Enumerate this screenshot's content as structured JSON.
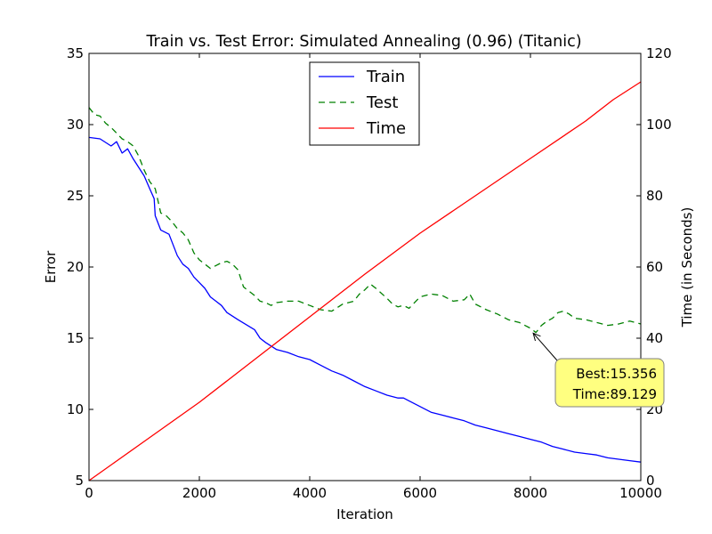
{
  "chart_data": {
    "type": "line",
    "title": "Train vs. Test Error: Simulated Annealing (0.96) (Titanic)",
    "xlabel": "Iteration",
    "ylabel": "Error",
    "y2label": "Time (in Seconds)",
    "xlim": [
      0,
      10000
    ],
    "ylim": [
      5,
      35
    ],
    "y2lim": [
      0,
      120
    ],
    "xticks": [
      "0",
      "2000",
      "4000",
      "6000",
      "8000",
      "10000"
    ],
    "yticks": [
      "5",
      "10",
      "15",
      "20",
      "25",
      "30",
      "35"
    ],
    "y2ticks": [
      "0",
      "20",
      "40",
      "60",
      "80",
      "100",
      "120"
    ],
    "grid": false,
    "legend_position": "top-center",
    "colors": {
      "train": "#0000ff",
      "test": "#008000",
      "time": "#ff0000",
      "y2label": "#008000",
      "annotation_fill": "#ffff80",
      "annotation_border": "#808080"
    },
    "series": [
      {
        "name": "Train",
        "axis": "left",
        "style": "solid",
        "x": [
          0,
          200,
          400,
          500,
          600,
          700,
          800,
          900,
          1000,
          1100,
          1180,
          1200,
          1300,
          1450,
          1500,
          1600,
          1700,
          1800,
          1900,
          2000,
          2100,
          2200,
          2300,
          2400,
          2500,
          2700,
          3000,
          3100,
          3200,
          3400,
          3600,
          3800,
          4000,
          4200,
          4400,
          4600,
          4800,
          5000,
          5200,
          5400,
          5600,
          5700,
          5800,
          6000,
          6200,
          6400,
          6600,
          6800,
          7000,
          7200,
          7400,
          7600,
          7800,
          8000,
          8200,
          8400,
          8600,
          8800,
          9000,
          9200,
          9400,
          9600,
          9800,
          10000
        ],
        "values": [
          29.1,
          29.0,
          28.5,
          28.8,
          28.0,
          28.3,
          27.6,
          27.0,
          26.4,
          25.5,
          24.8,
          23.6,
          22.6,
          22.3,
          21.8,
          20.8,
          20.2,
          19.9,
          19.3,
          18.9,
          18.5,
          17.9,
          17.6,
          17.3,
          16.8,
          16.3,
          15.6,
          15.0,
          14.7,
          14.2,
          14.0,
          13.7,
          13.5,
          13.1,
          12.7,
          12.4,
          12.0,
          11.6,
          11.3,
          11.0,
          10.8,
          10.8,
          10.6,
          10.2,
          9.8,
          9.6,
          9.4,
          9.2,
          8.9,
          8.7,
          8.5,
          8.3,
          8.1,
          7.9,
          7.7,
          7.4,
          7.2,
          7.0,
          6.9,
          6.8,
          6.6,
          6.5,
          6.4,
          6.3
        ]
      },
      {
        "name": "Test",
        "axis": "left",
        "style": "dashed",
        "x": [
          0,
          100,
          200,
          300,
          400,
          500,
          600,
          700,
          800,
          900,
          1000,
          1100,
          1200,
          1300,
          1400,
          1500,
          1600,
          1700,
          1800,
          1900,
          2000,
          2100,
          2200,
          2300,
          2400,
          2500,
          2600,
          2700,
          2800,
          2900,
          3000,
          3100,
          3200,
          3300,
          3400,
          3600,
          3800,
          4000,
          4200,
          4400,
          4600,
          4800,
          4900,
          5000,
          5100,
          5200,
          5400,
          5500,
          5600,
          5700,
          5800,
          6000,
          6200,
          6400,
          6600,
          6800,
          6900,
          7000,
          7200,
          7400,
          7600,
          7800,
          8000,
          8100,
          8200,
          8300,
          8400,
          8500,
          8600,
          8700,
          8800,
          9000,
          9200,
          9400,
          9600,
          9800,
          10000
        ],
        "values": [
          31.2,
          30.7,
          30.6,
          30.1,
          29.8,
          29.4,
          29.0,
          28.8,
          28.5,
          27.8,
          26.8,
          26.0,
          25.5,
          23.8,
          23.6,
          23.2,
          22.7,
          22.4,
          21.9,
          21.0,
          20.5,
          20.2,
          19.9,
          20.1,
          20.3,
          20.4,
          20.2,
          19.8,
          18.6,
          18.3,
          18.0,
          17.6,
          17.5,
          17.3,
          17.5,
          17.6,
          17.6,
          17.3,
          17.0,
          16.9,
          17.4,
          17.6,
          18.1,
          18.4,
          18.8,
          18.5,
          17.8,
          17.4,
          17.2,
          17.3,
          17.1,
          17.9,
          18.1,
          18.0,
          17.6,
          17.7,
          18.1,
          17.4,
          17.0,
          16.7,
          16.3,
          16.1,
          15.7,
          15.4,
          15.9,
          16.2,
          16.4,
          16.8,
          16.9,
          16.7,
          16.4,
          16.3,
          16.1,
          15.9,
          16.0,
          16.2,
          16.0
        ]
      },
      {
        "name": "Time",
        "axis": "right",
        "style": "solid",
        "x": [
          0,
          500,
          1000,
          2000,
          3000,
          4000,
          5000,
          6000,
          7000,
          8000,
          9000,
          9500,
          10000
        ],
        "values": [
          0,
          5.5,
          11.0,
          22.0,
          34.0,
          46.0,
          58.0,
          69.5,
          80.0,
          90.5,
          101.0,
          107.0,
          112.0
        ]
      }
    ],
    "annotation": {
      "line1": "Best:15.356",
      "line2": "Time:89.129",
      "point_x": 8050,
      "point_y": 15.356,
      "label_x": 10000,
      "label_y": 12.0
    }
  }
}
